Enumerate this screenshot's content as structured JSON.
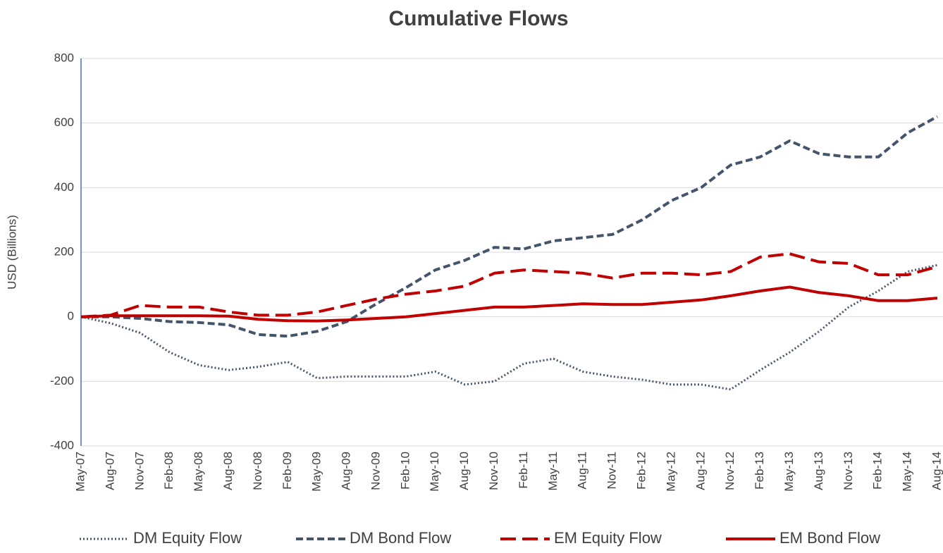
{
  "chart_data": {
    "type": "line",
    "title": "Cumulative Flows",
    "y_label": "USD (Billions)",
    "categories": [
      "May-07",
      "Aug-07",
      "Nov-07",
      "Feb-08",
      "May-08",
      "Aug-08",
      "Nov-08",
      "Feb-09",
      "May-09",
      "Aug-09",
      "Nov-09",
      "Feb-10",
      "May-10",
      "Aug-10",
      "Nov-10",
      "Feb-11",
      "May-11",
      "Aug-11",
      "Nov-11",
      "Feb-12",
      "May-12",
      "Aug-12",
      "Nov-12",
      "Feb-13",
      "May-13",
      "Aug-13",
      "Nov-13",
      "Feb-14",
      "May-14",
      "Aug-14"
    ],
    "series": [
      {
        "name": "DM Equity Flow",
        "color": "#44546a",
        "line_style": "dotted",
        "values": [
          0,
          -20,
          -50,
          -110,
          -150,
          -165,
          -155,
          -140,
          -190,
          -185,
          -185,
          -185,
          -170,
          -210,
          -200,
          -145,
          -130,
          -170,
          -185,
          -195,
          -210,
          -210,
          -225,
          -165,
          -110,
          -45,
          30,
          80,
          140,
          160
        ]
      },
      {
        "name": "DM Bond Flow",
        "color": "#44546a",
        "line_style": "dashed",
        "values": [
          0,
          0,
          -5,
          -15,
          -18,
          -25,
          -55,
          -60,
          -45,
          -15,
          40,
          90,
          145,
          175,
          215,
          210,
          235,
          245,
          255,
          300,
          360,
          400,
          470,
          495,
          545,
          505,
          495,
          495,
          570,
          620
        ]
      },
      {
        "name": "EM Equity Flow",
        "color": "#c00000",
        "line_style": "long-dash",
        "values": [
          0,
          5,
          35,
          30,
          30,
          15,
          5,
          5,
          15,
          35,
          55,
          70,
          80,
          95,
          135,
          145,
          140,
          135,
          120,
          135,
          135,
          130,
          140,
          185,
          195,
          170,
          165,
          130,
          130,
          155
        ]
      },
      {
        "name": "EM Bond Flow",
        "color": "#c00000",
        "line_style": "solid",
        "values": [
          0,
          3,
          3,
          3,
          3,
          2,
          -8,
          -12,
          -13,
          -10,
          -5,
          0,
          10,
          20,
          30,
          30,
          35,
          40,
          38,
          38,
          45,
          52,
          65,
          80,
          92,
          75,
          65,
          50,
          50,
          58
        ]
      }
    ],
    "ylim": [
      -400,
      800
    ],
    "yticks": [
      -400,
      -200,
      0,
      200,
      400,
      600,
      800
    ],
    "grid": true,
    "legend": "bottom"
  }
}
